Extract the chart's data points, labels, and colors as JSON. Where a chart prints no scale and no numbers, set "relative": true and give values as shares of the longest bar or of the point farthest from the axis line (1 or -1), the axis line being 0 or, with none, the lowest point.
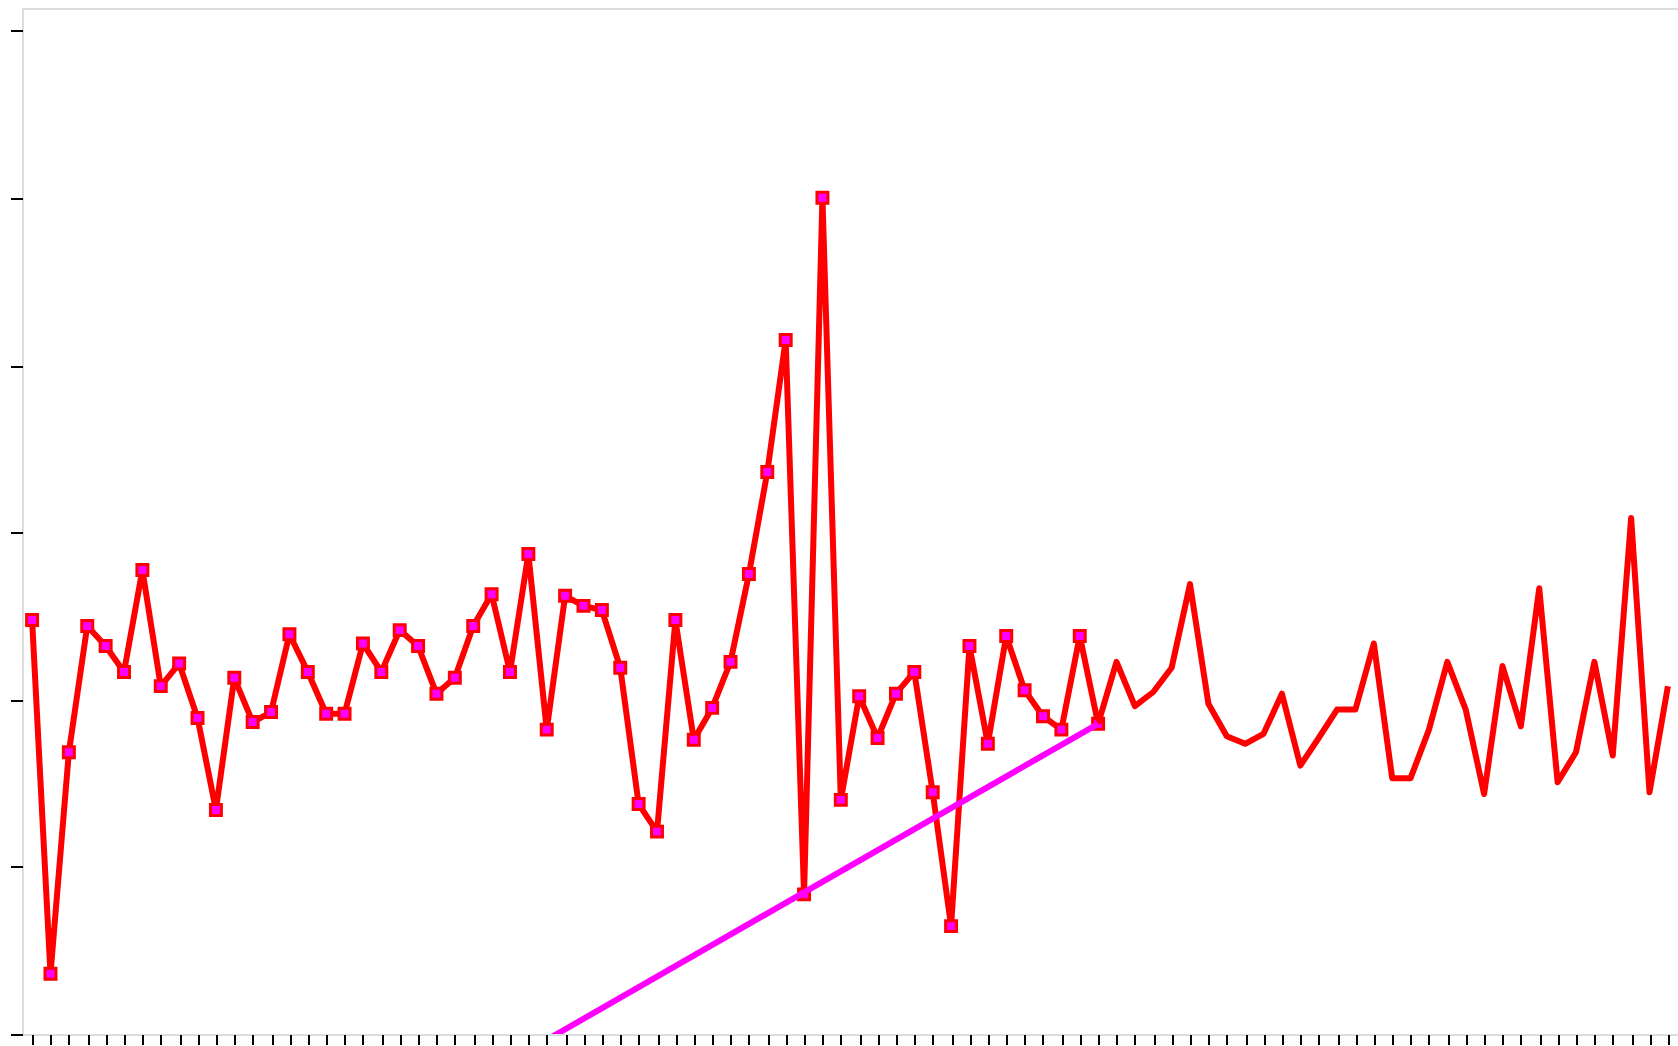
{
  "chart_data": {
    "type": "line",
    "relative": true,
    "tick_labels": false,
    "grid": false,
    "categories": [
      null,
      null,
      null,
      null,
      null,
      null,
      null,
      null,
      null,
      null,
      null,
      null,
      null,
      null,
      null,
      null,
      null,
      null,
      null,
      null,
      null,
      null,
      null,
      null,
      null,
      null,
      null,
      null,
      null,
      null,
      null,
      null,
      null,
      null,
      null,
      null,
      null,
      null,
      null,
      null,
      null,
      null,
      null,
      null,
      null,
      null,
      null,
      null,
      null,
      null,
      null,
      null,
      null,
      null,
      null,
      null,
      null,
      null,
      null,
      null,
      null,
      null,
      null,
      null,
      null,
      null,
      null,
      null,
      null,
      null,
      null,
      null,
      null,
      null,
      null,
      null,
      null,
      null,
      null,
      null,
      null,
      null,
      null,
      null,
      null,
      null,
      null,
      null,
      null,
      null
    ],
    "series": [
      {
        "color": "#ff0000",
        "marker": "square",
        "line_style": "solid",
        "values": [
          0.495,
          0.072,
          0.337,
          0.488,
          0.464,
          0.433,
          0.555,
          0.416,
          0.443,
          0.378,
          0.268,
          0.426,
          0.373,
          0.385,
          0.478,
          0.433,
          0.383,
          0.383,
          0.467,
          0.433,
          0.483,
          0.464,
          0.407,
          0.426,
          0.488,
          0.526,
          0.433,
          0.574,
          0.364,
          0.524,
          0.512,
          0.507,
          0.438,
          0.275,
          0.242,
          0.495,
          0.352,
          0.39,
          0.445,
          0.55,
          0.672,
          0.83,
          0.167,
          1,
          0.28,
          0.404,
          0.354,
          0.407,
          0.433,
          0.289,
          0.129,
          0.464,
          0.347,
          0.476,
          0.411,
          0.38,
          0.364,
          0.476,
          0.371,
          null,
          null,
          null,
          null,
          null,
          null,
          null,
          null,
          null,
          null,
          null,
          null,
          null,
          null,
          null,
          null,
          null,
          null,
          null,
          null,
          null,
          null,
          null,
          null,
          null,
          null,
          null,
          null,
          null,
          null,
          null
        ]
      },
      {
        "color": "#ff0000",
        "marker": "none",
        "line_style": "solid",
        "values": [
          null,
          null,
          null,
          null,
          null,
          null,
          null,
          null,
          null,
          null,
          null,
          null,
          null,
          null,
          null,
          null,
          null,
          null,
          null,
          null,
          null,
          null,
          null,
          null,
          null,
          null,
          null,
          null,
          null,
          null,
          null,
          null,
          null,
          null,
          null,
          null,
          null,
          null,
          null,
          null,
          null,
          null,
          null,
          null,
          null,
          null,
          null,
          null,
          null,
          null,
          null,
          null,
          null,
          null,
          null,
          null,
          null,
          null,
          0.371,
          0.445,
          0.392,
          0.409,
          0.438,
          0.538,
          0.395,
          0.356,
          0.347,
          0.359,
          0.407,
          0.321,
          0.354,
          0.388,
          0.388,
          0.467,
          0.306,
          0.306,
          0.364,
          0.445,
          0.388,
          0.287,
          0.44,
          0.368,
          0.533,
          0.301,
          0.337,
          0.445,
          0.333,
          0.617,
          0.289,
          0.416
        ]
      },
      {
        "color": "#ff00ff",
        "marker": "none",
        "line_style": "solid",
        "values": [
          null,
          null,
          null,
          null,
          null,
          null,
          null,
          null,
          null,
          null,
          null,
          null,
          null,
          null,
          null,
          null,
          null,
          null,
          null,
          null,
          null,
          null,
          null,
          null,
          null,
          null,
          null,
          null,
          -0.007,
          null,
          null,
          null,
          null,
          null,
          null,
          null,
          null,
          null,
          null,
          null,
          null,
          null,
          null,
          null,
          null,
          null,
          null,
          null,
          null,
          null,
          null,
          null,
          null,
          null,
          null,
          null,
          null,
          null,
          0.371,
          null,
          null,
          null,
          null,
          null,
          null,
          null,
          null,
          null,
          null,
          null,
          null,
          null,
          null,
          null,
          null,
          null,
          null,
          null,
          null,
          null,
          null,
          null,
          null,
          null,
          null,
          null,
          null,
          null,
          null,
          null
        ]
      }
    ]
  }
}
